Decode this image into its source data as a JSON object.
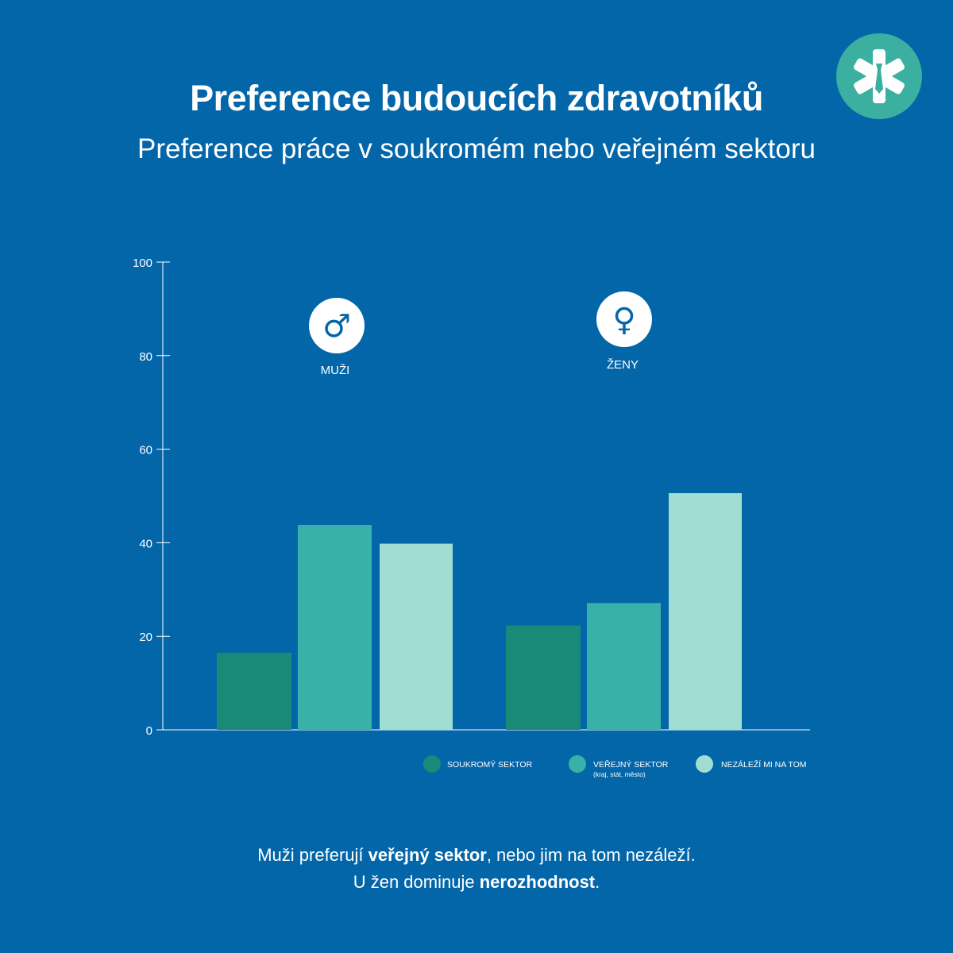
{
  "header": {
    "title": "Preference budoucích zdravotníků",
    "subtitle": "Preference práce v soukromém nebo veřejném sektoru",
    "logo_icon": "medical-star-icon"
  },
  "chart_data": {
    "type": "bar",
    "categories": [
      "MUŽI",
      "ŽENY"
    ],
    "category_icons": [
      "male-symbol-icon",
      "female-symbol-icon"
    ],
    "category_glyphs": [
      "♂",
      "♀"
    ],
    "series": [
      {
        "name": "SOUKROMÝ SEKTOR",
        "sublabel": "",
        "color": "#1a8a78",
        "values": [
          16.5,
          22.3
        ]
      },
      {
        "name": "VEŘEJNÝ SEKTOR",
        "sublabel": "(kraj, stát, město)",
        "color": "#38b2a8",
        "values": [
          43.8,
          27.1
        ]
      },
      {
        "name": "NEZÁLEŽÍ MI NA TOM",
        "sublabel": "",
        "color": "#a0ddd3",
        "values": [
          39.8,
          50.6
        ]
      }
    ],
    "ylim": [
      0,
      100
    ],
    "yticks": [
      0,
      20,
      40,
      60,
      80,
      100
    ],
    "xlabel": "",
    "ylabel": "",
    "grid": false,
    "legend_position": "bottom-right"
  },
  "footer": {
    "line1_pre": "Muži preferují ",
    "line1_bold": "veřejný sektor",
    "line1_post": ", nebo jim na tom nezáleží.",
    "line2_pre": "U žen dominuje ",
    "line2_bold": "nerozhodnost",
    "line2_post": "."
  },
  "colors": {
    "background": "#0366a9",
    "logo_circle": "#3bb0a0",
    "text": "#ffffff"
  }
}
